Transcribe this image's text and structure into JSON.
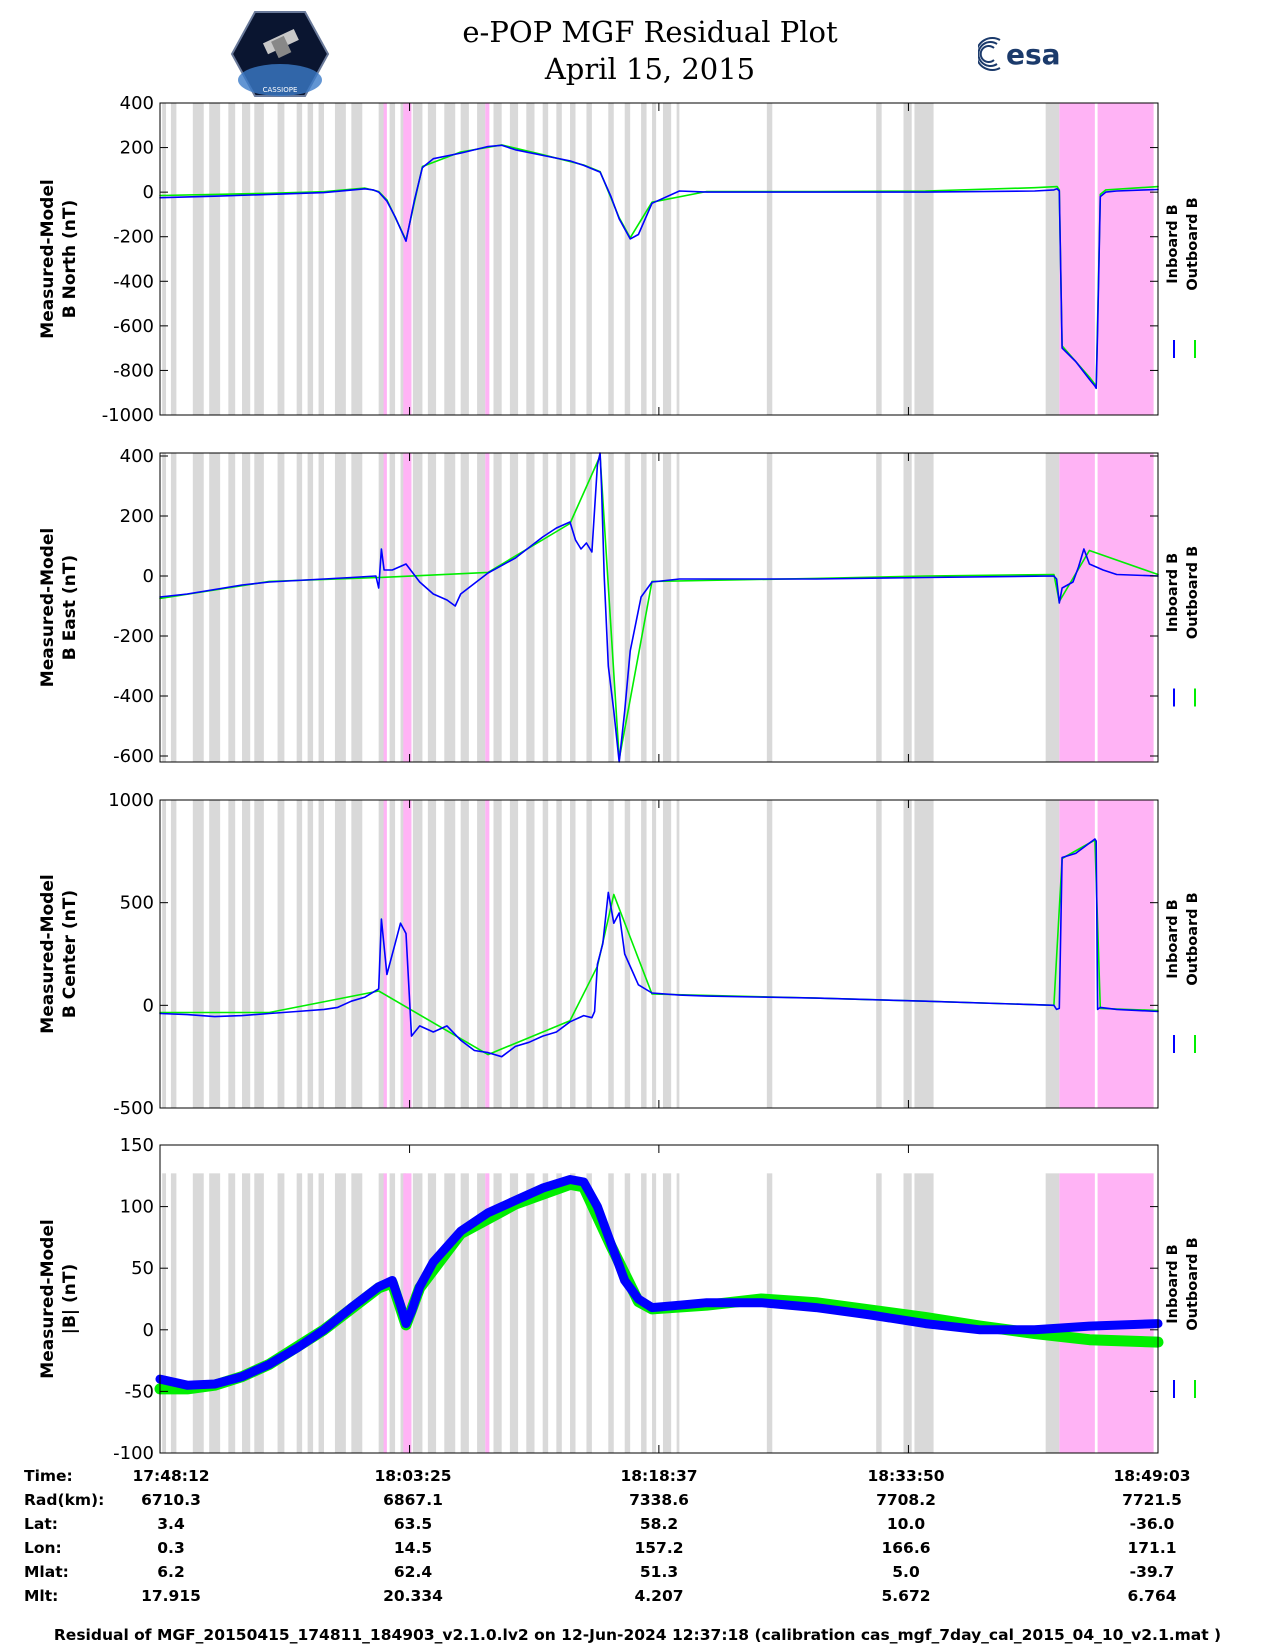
{
  "title": {
    "line1": "e-POP MGF Residual Plot",
    "line2": "April 15, 2015"
  },
  "logos": {
    "left_text": "CASSIOPE",
    "right_text": "esa"
  },
  "colors": {
    "inboard": "#0000ff",
    "outboard": "#00ee00",
    "gray_band": "#d9d9d9",
    "pink_band": "#ffb3f5"
  },
  "legend": {
    "inboard": "Inboard B",
    "outboard": "Outboard B"
  },
  "x_ticks": [
    0,
    913,
    1825,
    2738,
    3651
  ],
  "x_range": [
    0,
    3651
  ],
  "gray_bands": [
    [
      8,
      22
    ],
    [
      40,
      60
    ],
    [
      120,
      160
    ],
    [
      180,
      220
    ],
    [
      250,
      275
    ],
    [
      300,
      330
    ],
    [
      345,
      380
    ],
    [
      430,
      455
    ],
    [
      500,
      520
    ],
    [
      540,
      560
    ],
    [
      580,
      600
    ],
    [
      640,
      680
    ],
    [
      700,
      740
    ],
    [
      800,
      820
    ],
    [
      840,
      860
    ],
    [
      880,
      900
    ],
    [
      925,
      960
    ],
    [
      980,
      1010
    ],
    [
      1040,
      1080
    ],
    [
      1100,
      1130
    ],
    [
      1160,
      1190
    ],
    [
      1220,
      1250
    ],
    [
      1280,
      1310
    ],
    [
      1340,
      1370
    ],
    [
      1400,
      1420
    ],
    [
      1450,
      1470
    ],
    [
      1500,
      1520
    ],
    [
      1560,
      1580
    ],
    [
      1640,
      1660
    ],
    [
      1700,
      1720
    ],
    [
      1760,
      1780
    ],
    [
      1800,
      1815
    ],
    [
      1840,
      1870
    ],
    [
      1890,
      1900
    ],
    [
      2220,
      2240
    ],
    [
      2620,
      2640
    ],
    [
      2720,
      2750
    ],
    [
      2760,
      2830
    ],
    [
      3240,
      3290
    ]
  ],
  "pink_bands": [
    [
      818,
      830
    ],
    [
      890,
      920
    ],
    [
      1190,
      1205
    ],
    [
      3290,
      3420
    ],
    [
      3430,
      3635
    ]
  ],
  "chart_data": [
    {
      "type": "line",
      "ylabel_line1": "Measured-Model",
      "ylabel_line2": "B North (nT)",
      "ylim": [
        -1000,
        400
      ],
      "yticks": [
        -1000,
        -800,
        -600,
        -400,
        -200,
        0,
        200,
        400
      ],
      "ytick_labels": [
        "-1000",
        "-800",
        "-600",
        "-400",
        "-200",
        "0",
        "200",
        "400"
      ],
      "series": [
        {
          "name": "Inboard B",
          "color": "#0000ff",
          "x": [
            0,
            200,
            400,
            600,
            750,
            780,
            800,
            830,
            860,
            900,
            930,
            960,
            1000,
            1100,
            1200,
            1250,
            1300,
            1400,
            1500,
            1550,
            1590,
            1610,
            1650,
            1680,
            1720,
            1750,
            1800,
            1900,
            2000,
            2400,
            2800,
            3200,
            3270,
            3282,
            3290,
            3300,
            3350,
            3400,
            3420,
            3425,
            3430,
            3440,
            3460,
            3500,
            3600,
            3651
          ],
          "y": [
            -25,
            -18,
            -10,
            -2,
            15,
            10,
            0,
            -40,
            -110,
            -220,
            -40,
            110,
            150,
            175,
            205,
            210,
            190,
            165,
            140,
            120,
            100,
            90,
            -20,
            -120,
            -210,
            -190,
            -50,
            5,
            0,
            0,
            0,
            5,
            10,
            15,
            5,
            -700,
            -760,
            -840,
            -870,
            -880,
            -620,
            -20,
            0,
            5,
            10,
            12
          ]
        },
        {
          "name": "Outboard B",
          "color": "#00ee00",
          "x": [
            0,
            200,
            400,
            600,
            750,
            800,
            830,
            900,
            960,
            1100,
            1250,
            1400,
            1550,
            1610,
            1680,
            1720,
            1800,
            2000,
            2400,
            2800,
            3200,
            3282,
            3290,
            3300,
            3400,
            3425,
            3440,
            3460,
            3651
          ],
          "y": [
            -15,
            -10,
            -5,
            2,
            18,
            3,
            -35,
            -215,
            115,
            180,
            212,
            168,
            122,
            92,
            -115,
            -205,
            -45,
            3,
            3,
            5,
            20,
            25,
            10,
            -690,
            -830,
            -870,
            -10,
            10,
            25
          ]
        }
      ]
    },
    {
      "type": "line",
      "ylabel_line1": "Measured-Model",
      "ylabel_line2": "B East (nT)",
      "ylim": [
        -620,
        410
      ],
      "yticks": [
        -600,
        -400,
        -200,
        0,
        200,
        400
      ],
      "ytick_labels": [
        "-600",
        "-400",
        "-200",
        "0",
        "200",
        "400"
      ],
      "series": [
        {
          "name": "Inboard B",
          "color": "#0000ff",
          "x": [
            0,
            100,
            200,
            300,
            400,
            500,
            600,
            700,
            790,
            800,
            810,
            820,
            850,
            900,
            950,
            1000,
            1050,
            1080,
            1100,
            1200,
            1300,
            1400,
            1450,
            1500,
            1520,
            1540,
            1560,
            1580,
            1600,
            1610,
            1615,
            1625,
            1640,
            1660,
            1680,
            1700,
            1720,
            1760,
            1800,
            1900,
            2000,
            2400,
            2800,
            3270,
            3280,
            3290,
            3300,
            3340,
            3360,
            3380,
            3400,
            3450,
            3500,
            3651
          ],
          "y": [
            -70,
            -60,
            -45,
            -30,
            -20,
            -15,
            -10,
            -5,
            0,
            -40,
            90,
            20,
            20,
            40,
            -20,
            -60,
            -80,
            -100,
            -60,
            10,
            60,
            130,
            160,
            180,
            120,
            90,
            110,
            80,
            370,
            410,
            300,
            0,
            -300,
            -450,
            -620,
            -450,
            -250,
            -70,
            -20,
            -10,
            -10,
            -10,
            -5,
            0,
            -10,
            -90,
            -40,
            -20,
            30,
            90,
            40,
            20,
            5,
            0
          ]
        },
        {
          "name": "Outboard B",
          "color": "#00ee00",
          "x": [
            0,
            400,
            800,
            1200,
            1500,
            1610,
            1680,
            1800,
            2400,
            2800,
            3270,
            3290,
            3400,
            3651
          ],
          "y": [
            -75,
            -18,
            -5,
            12,
            175,
            400,
            -610,
            -18,
            -8,
            0,
            5,
            -85,
            85,
            5
          ]
        }
      ]
    },
    {
      "type": "line",
      "ylabel_line1": "Measured-Model",
      "ylabel_line2": "B Center (nT)",
      "ylim": [
        -500,
        1000
      ],
      "yticks": [
        -500,
        0,
        500,
        1000
      ],
      "ytick_labels": [
        "-500",
        "0",
        "500",
        "1000"
      ],
      "series": [
        {
          "name": "Inboard B",
          "color": "#0000ff",
          "x": [
            0,
            100,
            200,
            300,
            400,
            500,
            600,
            650,
            700,
            750,
            800,
            810,
            830,
            860,
            880,
            900,
            920,
            950,
            1000,
            1050,
            1100,
            1150,
            1200,
            1250,
            1300,
            1350,
            1400,
            1450,
            1500,
            1550,
            1580,
            1590,
            1600,
            1620,
            1640,
            1660,
            1680,
            1700,
            1750,
            1800,
            1900,
            2000,
            2400,
            2800,
            3270,
            3280,
            3290,
            3300,
            3350,
            3400,
            3420,
            3425,
            3430,
            3440,
            3500,
            3651
          ],
          "y": [
            -40,
            -45,
            -55,
            -50,
            -40,
            -30,
            -20,
            -10,
            20,
            40,
            80,
            420,
            150,
            300,
            400,
            350,
            -150,
            -100,
            -130,
            -100,
            -170,
            -220,
            -230,
            -250,
            -200,
            -180,
            -150,
            -130,
            -80,
            -50,
            -60,
            -30,
            200,
            300,
            550,
            400,
            450,
            250,
            100,
            60,
            50,
            45,
            35,
            20,
            0,
            -20,
            -15,
            720,
            740,
            790,
            810,
            800,
            -20,
            -10,
            -20,
            -30
          ]
        },
        {
          "name": "Outboard B",
          "color": "#00ee00",
          "x": [
            0,
            400,
            800,
            1200,
            1500,
            1600,
            1660,
            1800,
            2400,
            2800,
            3270,
            3300,
            3420,
            3440,
            3651
          ],
          "y": [
            -35,
            -35,
            70,
            -240,
            -75,
            190,
            540,
            55,
            35,
            20,
            0,
            715,
            805,
            -15,
            -25
          ]
        }
      ]
    },
    {
      "type": "line",
      "ylabel_line1": "Measured-Model",
      "ylabel_line2": "|B| (nT)",
      "ylim": [
        -100,
        150
      ],
      "yticks": [
        -100,
        -50,
        0,
        50,
        100,
        150
      ],
      "ytick_labels": [
        "-100",
        "-50",
        "0",
        "50",
        "100",
        "150"
      ],
      "series": [
        {
          "name": "Inboard B",
          "color": "#0000ff",
          "x": [
            0,
            100,
            200,
            300,
            400,
            500,
            600,
            700,
            800,
            850,
            880,
            900,
            920,
            950,
            1000,
            1100,
            1200,
            1300,
            1400,
            1500,
            1550,
            1600,
            1650,
            1700,
            1750,
            1800,
            1900,
            2000,
            2100,
            2200,
            2400,
            2600,
            2800,
            3000,
            3200,
            3400,
            3651
          ],
          "y": [
            -40,
            -45,
            -44,
            -38,
            -28,
            -15,
            0,
            18,
            35,
            40,
            20,
            5,
            15,
            35,
            55,
            80,
            95,
            105,
            115,
            122,
            120,
            100,
            70,
            40,
            25,
            18,
            20,
            22,
            22,
            22,
            18,
            12,
            5,
            0,
            0,
            3,
            5
          ]
        },
        {
          "name": "Outboard B",
          "color": "#00ee00",
          "x": [
            0,
            100,
            200,
            300,
            400,
            600,
            800,
            850,
            900,
            950,
            1100,
            1300,
            1500,
            1550,
            1650,
            1750,
            1800,
            2000,
            2200,
            2400,
            2600,
            2800,
            3000,
            3200,
            3400,
            3651
          ],
          "y": [
            -48,
            -48,
            -45,
            -38,
            -28,
            0,
            34,
            38,
            4,
            34,
            78,
            102,
            118,
            116,
            68,
            23,
            17,
            20,
            25,
            22,
            16,
            10,
            3,
            -3,
            -8,
            -10
          ]
        }
      ]
    }
  ],
  "ephemeris": {
    "rows": [
      {
        "label": "Time:",
        "values": [
          "17:48:12",
          "18:03:25",
          "18:18:37",
          "18:33:50",
          "18:49:03"
        ]
      },
      {
        "label": "Rad(km):",
        "values": [
          "6710.3",
          "6867.1",
          "7338.6",
          "7708.2",
          "7721.5"
        ]
      },
      {
        "label": "Lat:",
        "values": [
          "3.4",
          "63.5",
          "58.2",
          "10.0",
          "-36.0"
        ]
      },
      {
        "label": "Lon:",
        "values": [
          "0.3",
          "14.5",
          "157.2",
          "166.6",
          "171.1"
        ]
      },
      {
        "label": "Mlat:",
        "values": [
          "6.2",
          "62.4",
          "51.3",
          "5.0",
          "-39.7"
        ]
      },
      {
        "label": "Mlt:",
        "values": [
          "17.915",
          "20.334",
          "4.207",
          "5.672",
          "6.764"
        ]
      }
    ]
  },
  "footer": "Residual of MGF_20150415_174811_184903_v2.1.0.lv2 on 12-Jun-2024 12:37:18 (calibration cas_mgf_7day_cal_2015_04_10_v2.1.mat )"
}
